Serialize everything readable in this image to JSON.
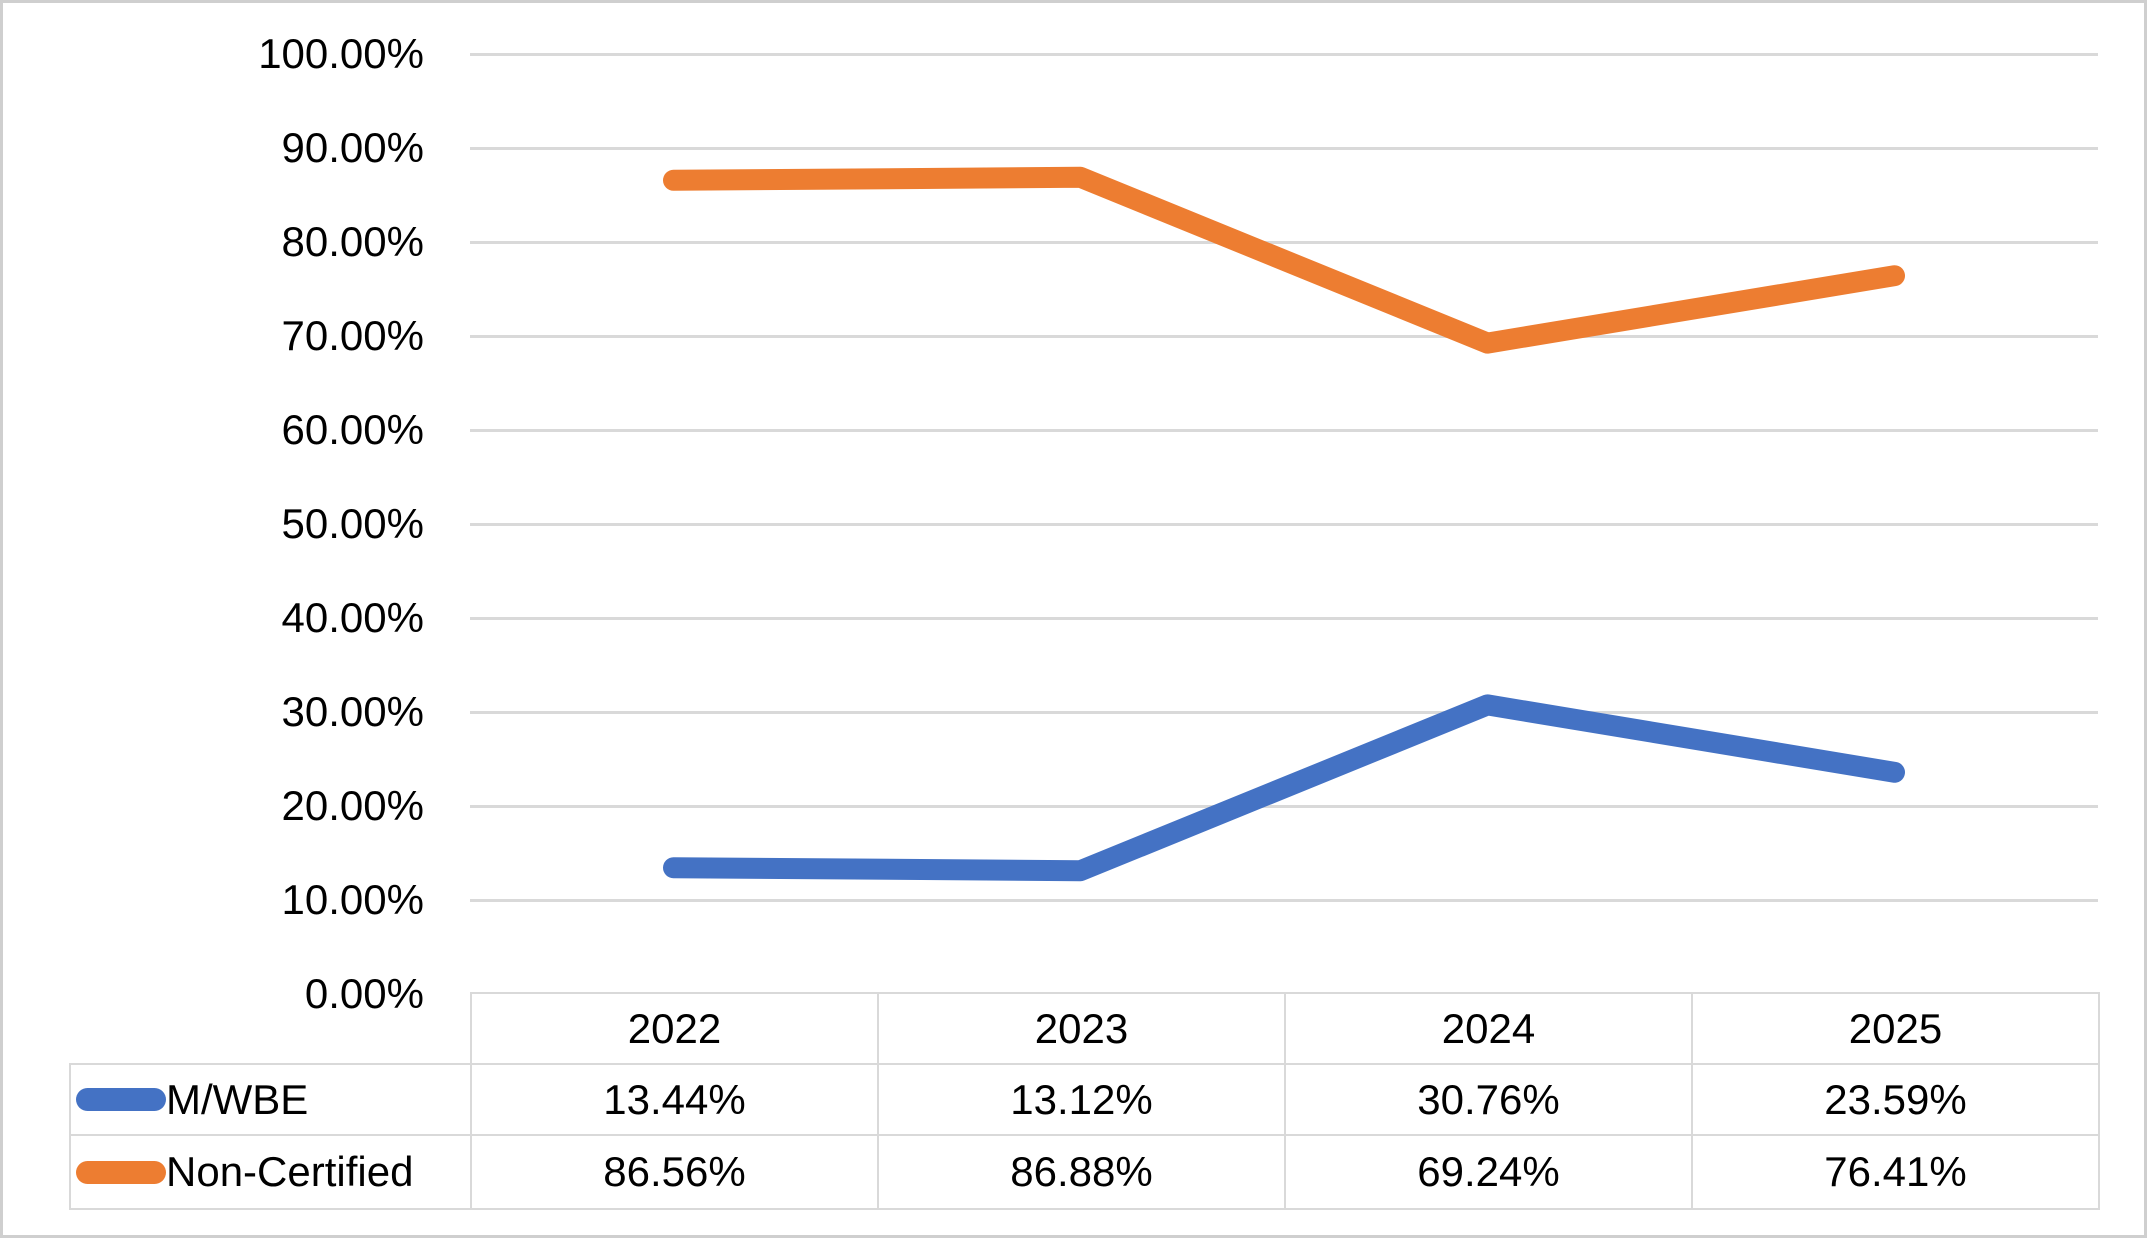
{
  "chart_data": {
    "type": "line",
    "title": "",
    "xlabel": "",
    "ylabel": "",
    "categories": [
      "2022",
      "2023",
      "2024",
      "2025"
    ],
    "series": [
      {
        "name": "M/WBE",
        "color": "#4472C4",
        "values": [
          13.44,
          13.12,
          30.76,
          23.59
        ],
        "labels": [
          "13.44%",
          "13.12%",
          "30.76%",
          "23.59%"
        ]
      },
      {
        "name": "Non-Certified",
        "color": "#ED7D31",
        "values": [
          86.56,
          86.88,
          69.24,
          76.41
        ],
        "labels": [
          "86.56%",
          "86.88%",
          "69.24%",
          "76.41%"
        ]
      }
    ],
    "y_axis": {
      "min": 0,
      "max": 100,
      "step": 10,
      "ticks": [
        {
          "value": 100,
          "label": "100.00%"
        },
        {
          "value": 90,
          "label": "90.00%"
        },
        {
          "value": 80,
          "label": "80.00%"
        },
        {
          "value": 70,
          "label": "70.00%"
        },
        {
          "value": 60,
          "label": "60.00%"
        },
        {
          "value": 50,
          "label": "50.00%"
        },
        {
          "value": 40,
          "label": "40.00%"
        },
        {
          "value": 30,
          "label": "30.00%"
        },
        {
          "value": 20,
          "label": "20.00%"
        },
        {
          "value": 10,
          "label": "10.00%"
        },
        {
          "value": 0,
          "label": "0.00%"
        }
      ]
    },
    "grid": true,
    "legend_position": "data-table-left",
    "data_table_shown": true
  },
  "colors": {
    "gridline": "#D9D9D9",
    "table_border": "#D9D9D9",
    "frame_border": "#CFCFCF",
    "text": "#000000"
  }
}
